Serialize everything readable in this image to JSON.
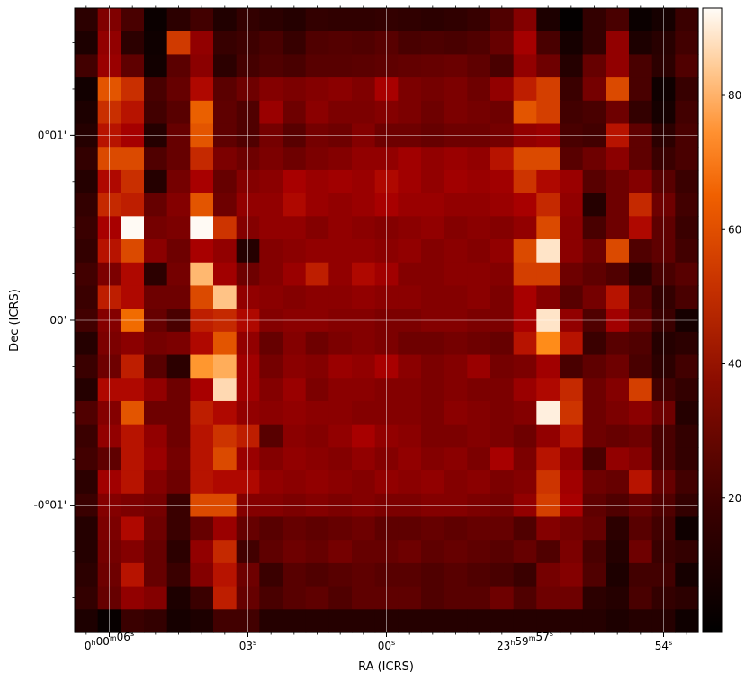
{
  "chart_data": {
    "type": "heatmap",
    "title": "",
    "xlabel": "RA (ICRS)",
    "ylabel": "Dec (ICRS)",
    "grid": true,
    "colormap": "gist_heat",
    "colorbar": {
      "range": [
        0,
        93
      ],
      "ticks": [
        "20",
        "40",
        "60",
        "80"
      ],
      "tick_values": [
        20,
        40,
        60,
        80
      ]
    },
    "x_ticks": [
      {
        "pre": "0",
        "s1": "h",
        "mid": "00",
        "s2": "m",
        "post": "06",
        "s3": "s",
        "col": 1.5
      },
      {
        "pre": "",
        "s1": "",
        "mid": "",
        "s2": "",
        "post": "03",
        "s3": "s",
        "col": 7.5
      },
      {
        "pre": "",
        "s1": "",
        "mid": "",
        "s2": "",
        "post": "00",
        "s3": "s",
        "col": 13.5
      },
      {
        "pre": "23",
        "s1": "h",
        "mid": "59",
        "s2": "m",
        "post": "57",
        "s3": "s",
        "col": 19.5
      },
      {
        "pre": "",
        "s1": "",
        "mid": "",
        "s2": "",
        "post": "54",
        "s3": "s",
        "col": 25.5
      }
    ],
    "y_ticks": [
      {
        "label": "0°01'",
        "row": 5.5
      },
      {
        "label": "00'",
        "row": 13.5
      },
      {
        "label": "-0°01'",
        "row": 21.5
      }
    ],
    "rows": 27,
    "cols": 27,
    "values": [
      [
        12,
        35,
        20,
        3,
        12,
        18,
        9,
        14,
        12,
        10,
        14,
        13,
        13,
        14,
        13,
        12,
        13,
        15,
        22,
        36,
        8,
        1,
        14,
        20,
        3,
        6,
        16
      ],
      [
        8,
        40,
        12,
        4,
        57,
        40,
        15,
        17,
        20,
        15,
        22,
        23,
        22,
        24,
        20,
        21,
        20,
        22,
        28,
        45,
        20,
        6,
        14,
        40,
        8,
        11,
        18
      ],
      [
        18,
        42,
        26,
        5,
        25,
        38,
        12,
        19,
        22,
        20,
        24,
        24,
        25,
        26,
        27,
        28,
        29,
        26,
        20,
        40,
        30,
        10,
        28,
        40,
        20,
        12,
        22
      ],
      [
        5,
        62,
        55,
        20,
        28,
        48,
        25,
        30,
        36,
        34,
        36,
        38,
        35,
        46,
        34,
        32,
        34,
        30,
        40,
        52,
        58,
        16,
        32,
        60,
        20,
        4,
        15
      ],
      [
        8,
        55,
        50,
        18,
        24,
        64,
        26,
        22,
        42,
        30,
        38,
        34,
        34,
        36,
        34,
        30,
        34,
        32,
        30,
        62,
        58,
        18,
        20,
        30,
        14,
        6,
        18
      ],
      [
        10,
        50,
        45,
        10,
        28,
        62,
        26,
        22,
        32,
        24,
        32,
        30,
        36,
        30,
        30,
        28,
        30,
        30,
        32,
        40,
        42,
        20,
        18,
        50,
        26,
        12,
        20
      ],
      [
        14,
        60,
        60,
        22,
        28,
        54,
        34,
        30,
        34,
        30,
        34,
        36,
        40,
        40,
        44,
        40,
        42,
        40,
        50,
        60,
        60,
        24,
        30,
        38,
        26,
        16,
        20
      ],
      [
        10,
        48,
        55,
        10,
        32,
        46,
        28,
        36,
        38,
        46,
        42,
        44,
        42,
        48,
        44,
        40,
        44,
        42,
        44,
        56,
        48,
        42,
        24,
        30,
        36,
        24,
        16
      ],
      [
        14,
        54,
        52,
        28,
        36,
        62,
        30,
        40,
        40,
        48,
        42,
        40,
        42,
        46,
        42,
        42,
        40,
        40,
        42,
        46,
        54,
        40,
        10,
        30,
        54,
        30,
        18
      ],
      [
        16,
        46,
        92,
        32,
        34,
        92,
        56,
        36,
        40,
        40,
        36,
        40,
        38,
        36,
        38,
        40,
        36,
        38,
        36,
        40,
        60,
        38,
        20,
        30,
        48,
        26,
        16
      ],
      [
        14,
        50,
        60,
        38,
        30,
        46,
        40,
        10,
        36,
        38,
        40,
        40,
        40,
        38,
        40,
        36,
        38,
        36,
        40,
        60,
        88,
        38,
        30,
        60,
        22,
        26,
        18
      ],
      [
        18,
        34,
        48,
        12,
        32,
        80,
        44,
        30,
        36,
        42,
        52,
        40,
        48,
        44,
        36,
        36,
        38,
        38,
        36,
        58,
        58,
        30,
        26,
        22,
        12,
        20,
        24
      ],
      [
        16,
        52,
        48,
        30,
        30,
        60,
        82,
        40,
        38,
        36,
        38,
        38,
        40,
        38,
        38,
        36,
        36,
        38,
        34,
        46,
        36,
        24,
        32,
        50,
        24,
        14,
        20
      ],
      [
        18,
        36,
        66,
        28,
        20,
        52,
        54,
        48,
        36,
        38,
        38,
        36,
        36,
        34,
        34,
        36,
        36,
        34,
        34,
        46,
        88,
        40,
        22,
        44,
        28,
        16,
        6
      ],
      [
        10,
        34,
        38,
        32,
        34,
        48,
        62,
        40,
        28,
        36,
        30,
        34,
        36,
        34,
        30,
        30,
        32,
        30,
        28,
        50,
        72,
        50,
        16,
        24,
        22,
        10,
        12
      ],
      [
        16,
        30,
        52,
        24,
        12,
        74,
        78,
        44,
        32,
        38,
        36,
        42,
        40,
        46,
        38,
        34,
        36,
        42,
        32,
        34,
        44,
        20,
        26,
        30,
        20,
        12,
        18
      ],
      [
        10,
        48,
        48,
        40,
        30,
        46,
        86,
        44,
        36,
        42,
        34,
        38,
        38,
        36,
        36,
        34,
        36,
        34,
        34,
        42,
        48,
        54,
        30,
        36,
        58,
        18,
        14
      ],
      [
        22,
        36,
        62,
        30,
        30,
        52,
        48,
        40,
        38,
        40,
        38,
        38,
        36,
        36,
        36,
        34,
        38,
        36,
        34,
        36,
        90,
        56,
        30,
        34,
        38,
        30,
        10
      ],
      [
        16,
        40,
        50,
        40,
        30,
        50,
        56,
        52,
        24,
        38,
        36,
        40,
        46,
        40,
        38,
        34,
        34,
        36,
        34,
        30,
        40,
        50,
        30,
        28,
        30,
        20,
        14
      ],
      [
        18,
        26,
        50,
        42,
        32,
        50,
        60,
        42,
        36,
        40,
        38,
        36,
        40,
        36,
        40,
        36,
        38,
        34,
        46,
        34,
        50,
        40,
        20,
        40,
        36,
        20,
        14
      ],
      [
        12,
        44,
        50,
        36,
        30,
        50,
        48,
        48,
        40,
        38,
        40,
        38,
        36,
        40,
        38,
        40,
        36,
        38,
        34,
        36,
        56,
        44,
        30,
        28,
        50,
        28,
        18
      ],
      [
        16,
        36,
        34,
        32,
        16,
        60,
        60,
        36,
        36,
        34,
        36,
        34,
        36,
        34,
        34,
        36,
        36,
        34,
        32,
        40,
        58,
        46,
        26,
        22,
        28,
        22,
        14
      ],
      [
        10,
        34,
        48,
        30,
        16,
        28,
        42,
        28,
        24,
        28,
        26,
        28,
        30,
        26,
        26,
        28,
        26,
        28,
        28,
        22,
        36,
        32,
        28,
        12,
        24,
        18,
        4
      ],
      [
        10,
        32,
        36,
        28,
        12,
        40,
        54,
        18,
        26,
        30,
        28,
        32,
        28,
        28,
        30,
        26,
        28,
        26,
        24,
        28,
        22,
        34,
        20,
        10,
        30,
        16,
        14
      ],
      [
        12,
        30,
        50,
        28,
        16,
        36,
        50,
        30,
        16,
        24,
        22,
        24,
        26,
        24,
        24,
        22,
        24,
        22,
        20,
        16,
        32,
        36,
        22,
        8,
        18,
        18,
        6
      ],
      [
        14,
        28,
        40,
        36,
        8,
        16,
        52,
        28,
        20,
        24,
        26,
        22,
        26,
        26,
        26,
        22,
        24,
        24,
        30,
        22,
        30,
        30,
        12,
        10,
        20,
        14,
        12
      ],
      [
        8,
        2,
        16,
        14,
        6,
        8,
        18,
        18,
        10,
        10,
        10,
        10,
        10,
        10,
        10,
        10,
        10,
        10,
        10,
        10,
        10,
        10,
        10,
        8,
        10,
        10,
        4
      ]
    ]
  }
}
